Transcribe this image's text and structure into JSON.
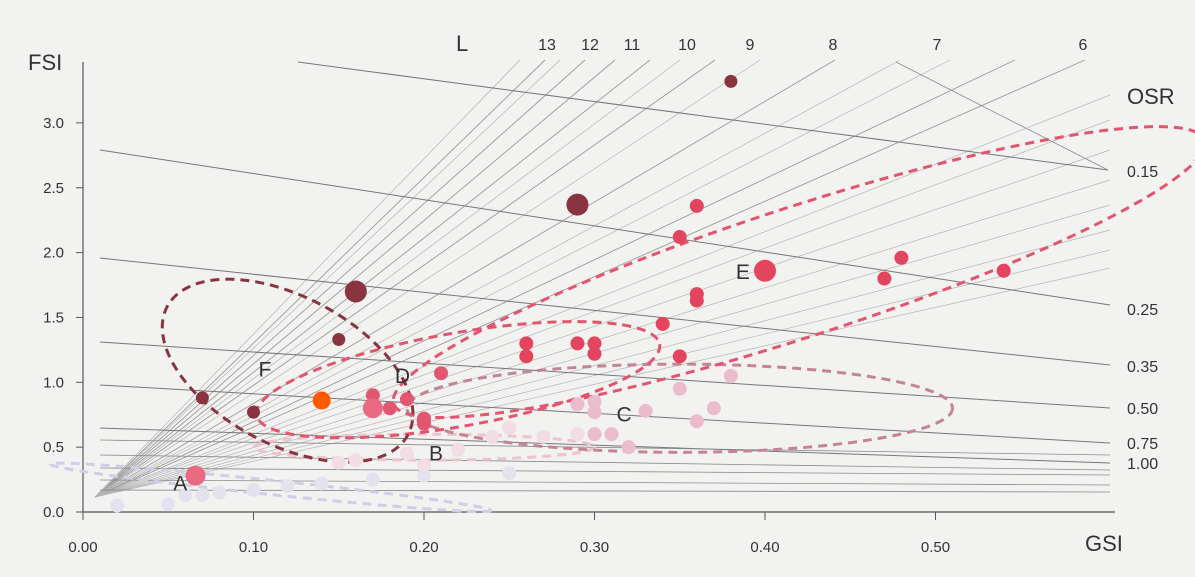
{
  "chart_data": {
    "type": "scatter",
    "title": "",
    "xlabel": "GSI",
    "ylabel": "FSI",
    "xlim": [
      0.0,
      0.6
    ],
    "ylim": [
      0.0,
      3.4
    ],
    "x_ticks": [
      "0.00",
      "0.10",
      "0.20",
      "0.30",
      "0.40",
      "0.50"
    ],
    "y_ticks": [
      "0.0",
      "0.5",
      "1.0",
      "1.5",
      "2.0",
      "2.5",
      "3.0"
    ],
    "l_label": "L",
    "l_lines": [
      {
        "label": "6",
        "value": 6
      },
      {
        "label": "7",
        "value": 7
      },
      {
        "label": "8",
        "value": 8
      },
      {
        "label": "9",
        "value": 9
      },
      {
        "label": "10",
        "value": 10
      },
      {
        "label": "11",
        "value": 11
      },
      {
        "label": "12",
        "value": 12
      },
      {
        "label": "13",
        "value": 13
      }
    ],
    "osr_label": "OSR",
    "osr_lines": [
      {
        "label": "0.15",
        "value": 0.15
      },
      {
        "label": "0.25",
        "value": 0.25
      },
      {
        "label": "0.35",
        "value": 0.35
      },
      {
        "label": "0.50",
        "value": 0.5
      },
      {
        "label": "0.75",
        "value": 0.75
      },
      {
        "label": "1.00",
        "value": 1.0
      }
    ],
    "clusters": [
      {
        "label": "A",
        "color": "#d0cde6",
        "center": [
          0.11,
          0.19
        ],
        "radii": [
          0.13,
          0.055
        ],
        "angle": 6
      },
      {
        "label": "B",
        "color": "#edc3cf",
        "center": [
          0.2,
          0.5
        ],
        "radii": [
          0.1,
          0.1
        ],
        "angle": 0
      },
      {
        "label": "C",
        "color": "#c48497",
        "center": [
          0.35,
          0.8
        ],
        "radii": [
          0.16,
          0.34
        ],
        "angle": 0
      },
      {
        "label": "D",
        "color": "#e2556f",
        "center": [
          0.22,
          1.02
        ],
        "radii": [
          0.12,
          0.36
        ],
        "angle": -10
      },
      {
        "label": "E",
        "color": "#e2556f",
        "center": [
          0.42,
          1.85
        ],
        "radii": [
          0.25,
          0.5
        ],
        "angle": -18
      },
      {
        "label": "F",
        "color": "#8a3442",
        "center": [
          0.12,
          1.09
        ],
        "radii": [
          0.08,
          0.57
        ],
        "angle": 28
      }
    ],
    "cluster_label_positions": {
      "A": [
        0.05,
        0.22
      ],
      "B": [
        0.2,
        0.45
      ],
      "C": [
        0.31,
        0.75
      ],
      "D": [
        0.18,
        1.05
      ],
      "E": [
        0.38,
        1.85
      ],
      "F": [
        0.1,
        1.1
      ]
    },
    "series": [
      {
        "name": "A",
        "color": "#e3e2ee",
        "points": [
          [
            0.02,
            0.05
          ],
          [
            0.05,
            0.06
          ],
          [
            0.06,
            0.13
          ],
          [
            0.07,
            0.13
          ],
          [
            0.08,
            0.15
          ],
          [
            0.1,
            0.17
          ],
          [
            0.12,
            0.2
          ],
          [
            0.14,
            0.22
          ],
          [
            0.17,
            0.25
          ],
          [
            0.2,
            0.28
          ],
          [
            0.25,
            0.3
          ]
        ]
      },
      {
        "name": "B",
        "color": "#f1dde3",
        "points": [
          [
            0.15,
            0.38
          ],
          [
            0.16,
            0.4
          ],
          [
            0.19,
            0.45
          ],
          [
            0.2,
            0.36
          ],
          [
            0.22,
            0.48
          ],
          [
            0.24,
            0.58
          ],
          [
            0.25,
            0.65
          ],
          [
            0.27,
            0.58
          ],
          [
            0.29,
            0.6
          ]
        ]
      },
      {
        "name": "C",
        "color": "#ebbccb",
        "points": [
          [
            0.29,
            0.83
          ],
          [
            0.3,
            0.85
          ],
          [
            0.3,
            0.77
          ],
          [
            0.3,
            0.6
          ],
          [
            0.31,
            0.6
          ],
          [
            0.32,
            0.5
          ],
          [
            0.33,
            0.78
          ],
          [
            0.35,
            0.95
          ],
          [
            0.36,
            0.7
          ],
          [
            0.37,
            0.8
          ],
          [
            0.38,
            1.05
          ]
        ]
      },
      {
        "name": "D",
        "color": "#e15770",
        "points": [
          [
            0.17,
            0.9
          ],
          [
            0.18,
            0.8
          ],
          [
            0.19,
            0.87
          ],
          [
            0.2,
            0.68
          ],
          [
            0.2,
            0.72
          ],
          [
            0.21,
            1.07
          ]
        ]
      },
      {
        "name": "E",
        "color": "#e3445e",
        "points": [
          [
            0.26,
            1.3
          ],
          [
            0.26,
            1.2
          ],
          [
            0.29,
            1.3
          ],
          [
            0.3,
            1.3
          ],
          [
            0.3,
            1.22
          ],
          [
            0.34,
            1.45
          ],
          [
            0.35,
            1.2
          ],
          [
            0.35,
            2.12
          ],
          [
            0.36,
            2.36
          ],
          [
            0.36,
            1.68
          ],
          [
            0.36,
            1.63
          ],
          [
            0.4,
            1.86
          ],
          [
            0.47,
            1.8
          ],
          [
            0.48,
            1.96
          ],
          [
            0.54,
            1.86
          ]
        ]
      },
      {
        "name": "F",
        "color": "#8a3442",
        "points": [
          [
            0.07,
            0.88
          ],
          [
            0.1,
            0.77
          ],
          [
            0.15,
            1.33
          ],
          [
            0.16,
            1.7
          ],
          [
            0.29,
            2.37
          ],
          [
            0.38,
            3.32
          ]
        ]
      },
      {
        "name": "highlight",
        "color": "#ff5a00",
        "points": [
          [
            0.14,
            0.86
          ]
        ]
      }
    ]
  }
}
